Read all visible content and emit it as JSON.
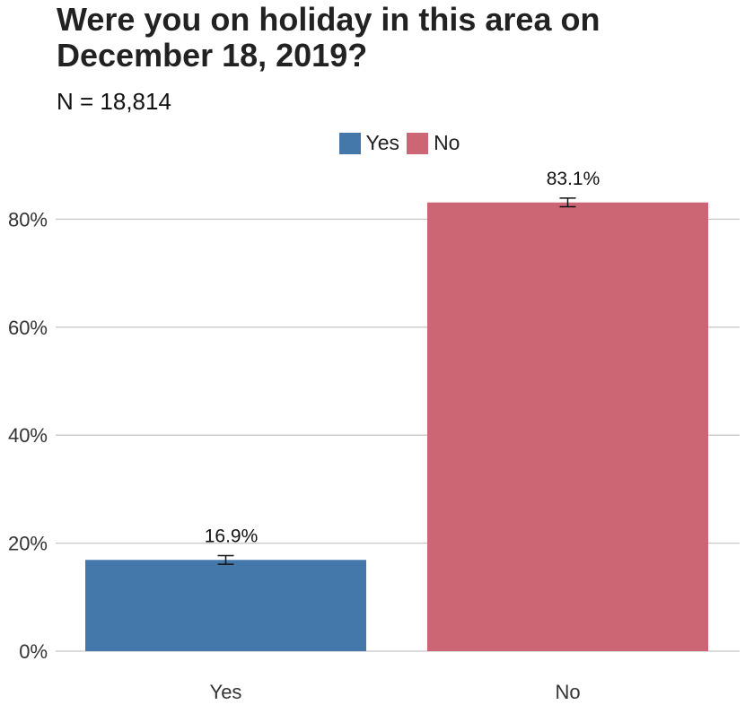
{
  "chart_data": {
    "type": "bar",
    "title": "Were you on holiday in this area on December 18, 2019?",
    "subtitle": "N = 18,814",
    "categories": [
      "Yes",
      "No"
    ],
    "values": [
      16.9,
      83.1
    ],
    "data_labels": [
      "16.9%",
      "83.1%"
    ],
    "error_bars": [
      {
        "low": 16.1,
        "high": 17.7
      },
      {
        "low": 82.3,
        "high": 83.9
      }
    ],
    "colors": [
      "#4578aa",
      "#cc6675"
    ],
    "legend": {
      "position": "top",
      "entries": [
        "Yes",
        "No"
      ]
    },
    "ylim": [
      0,
      90
    ],
    "yticks": [
      0,
      20,
      40,
      60,
      80
    ],
    "ytick_labels": [
      "0%",
      "20%",
      "40%",
      "60%",
      "80%"
    ],
    "xlabel": "",
    "ylabel": "",
    "grid": "horizontal"
  }
}
